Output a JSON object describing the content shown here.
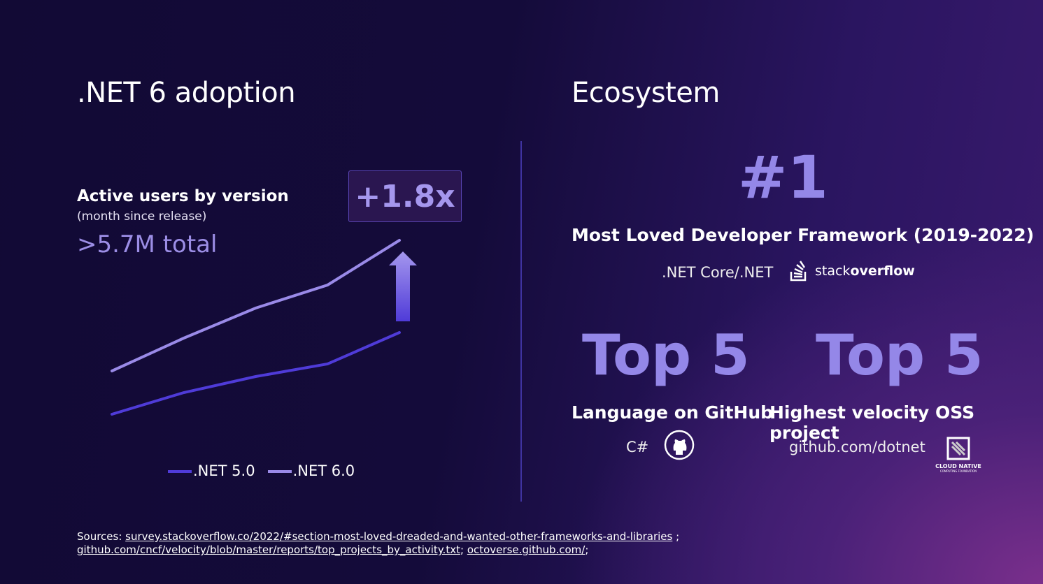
{
  "left": {
    "title": ".NET 6 adoption",
    "subtitle": "Active users by version",
    "note": "(month since release)",
    "total": ">5.7M total",
    "badge": "+1.8x"
  },
  "right": {
    "title": "Ecosystem",
    "rank": "#1",
    "rank_caption": "Most Loved Developer Framework (2019-2022)",
    "rank_product": ".NET Core/.NET",
    "stackoverflow_logo": {
      "light": "stack",
      "bold": "overflow"
    },
    "top5a": {
      "big": "Top 5",
      "caption": "Language on GitHub",
      "detail": "C#"
    },
    "top5b": {
      "big": "Top 5",
      "caption": "Highest velocity OSS project",
      "detail": "github.com/dotnet",
      "logo_line1": "CLOUD NATIVE",
      "logo_line2": "COMPUTING FOUNDATION"
    }
  },
  "sources": {
    "label": "Sources:",
    "link1": "survey.stackoverflow.co/2022/#section-most-loved-dreaded-and-wanted-other-frameworks-and-libraries",
    "sep1": " ;",
    "link2": "github.com/cncf/velocity/blob/master/reports/top_projects_by_activity.txt",
    "sep2": ";",
    "link3": "octoverse.github.com/",
    "sep3": ";"
  },
  "colors": {
    "net5": "#4f3bd8",
    "net6": "#9a8ae8",
    "accent": "#9487e8"
  },
  "chart_data": {
    "type": "line",
    "title": "Active users by version",
    "xlabel": "month since release",
    "ylabel": "",
    "x": [
      1,
      2,
      3,
      4,
      5
    ],
    "series": [
      {
        "name": ".NET 5.0",
        "values": [
          57,
          88,
          111,
          129,
          174
        ]
      },
      {
        "name": ".NET 6.0",
        "values": [
          119,
          166,
          209,
          242,
          306
        ]
      }
    ],
    "grid": false,
    "legend": "bottom",
    "annotation": "+1.8x"
  }
}
